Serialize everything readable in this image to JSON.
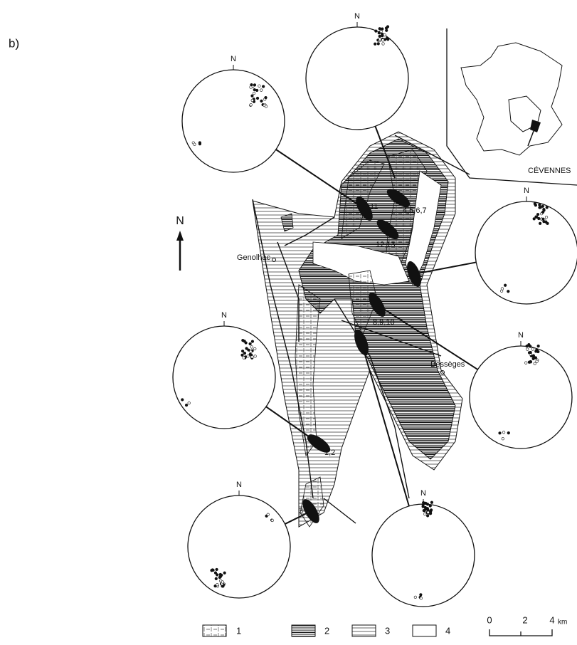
{
  "panel_label": "b)",
  "north_arrow": "N",
  "stereonets": [
    {
      "label": "N"
    },
    {
      "label": "N"
    },
    {
      "label": "N"
    },
    {
      "label": "N"
    },
    {
      "label": "N"
    },
    {
      "label": "N"
    },
    {
      "label": "N"
    }
  ],
  "inset": {
    "label": "CÉVENNES"
  },
  "towns": [
    "Genolhac",
    "Bessèges"
  ],
  "sites": [
    "4,5,6,7",
    "11",
    "12,13",
    "8,9,10",
    "1,2",
    "3"
  ],
  "legend": [
    "1",
    "2",
    "3",
    "4"
  ],
  "scale": {
    "ticks": [
      0,
      2,
      4
    ],
    "unit": "km"
  }
}
